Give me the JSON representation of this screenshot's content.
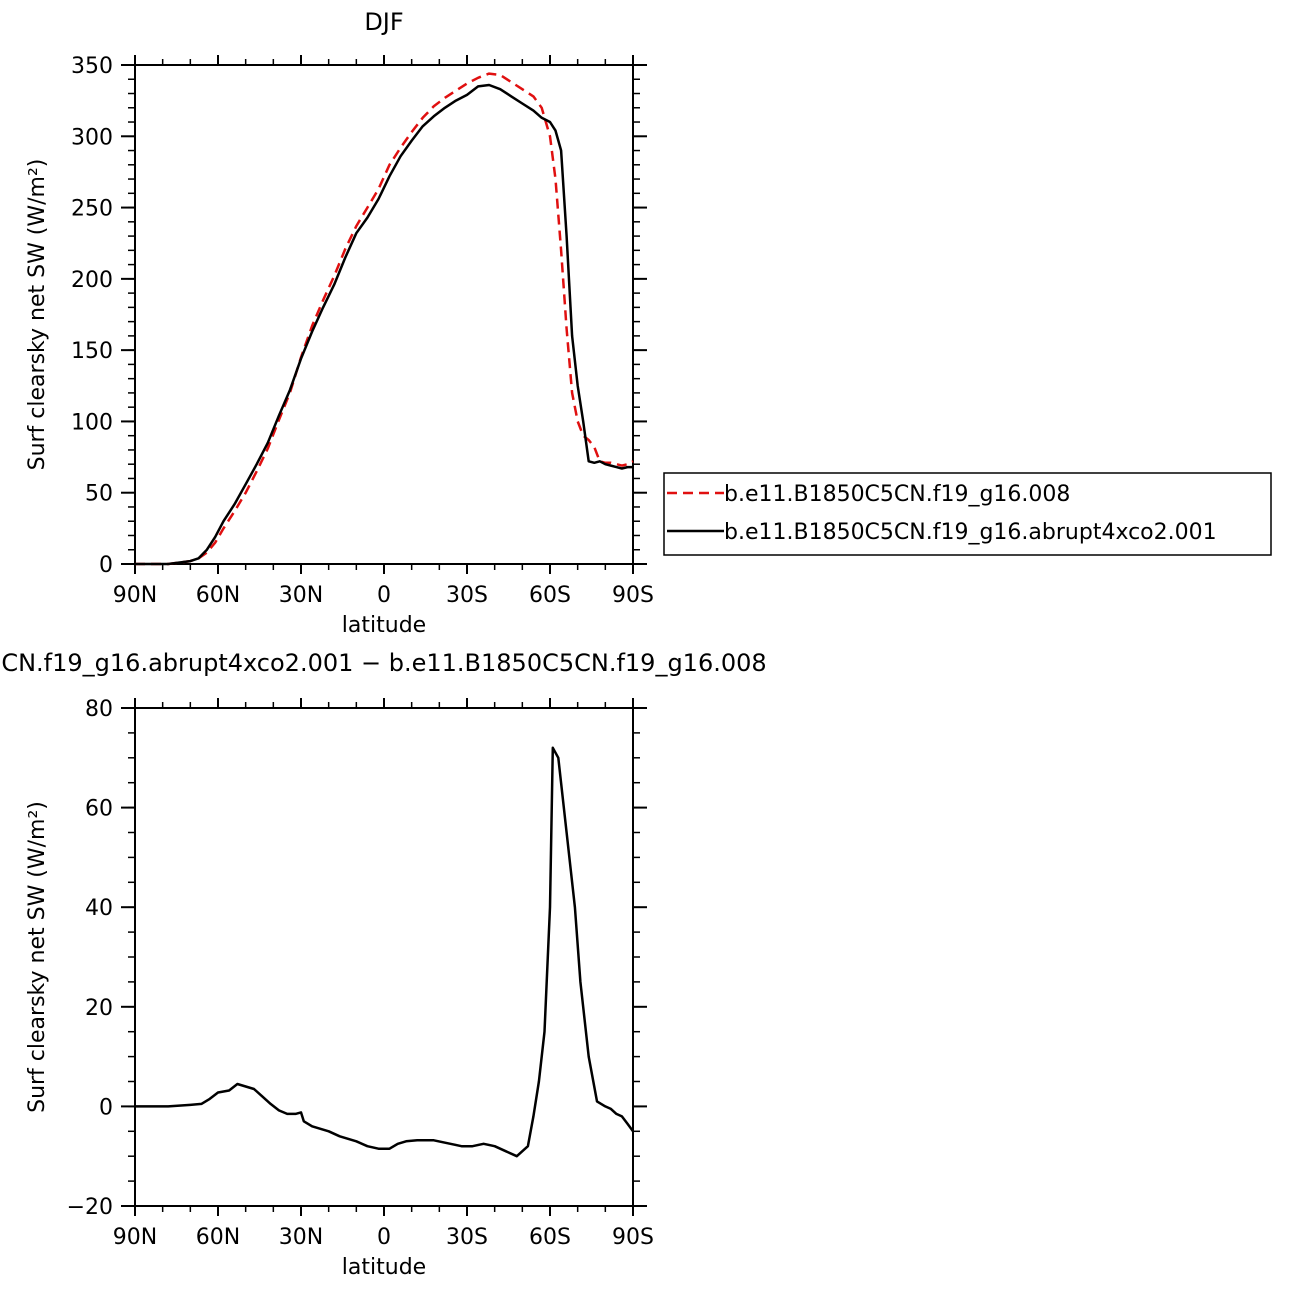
{
  "chart_data": [
    {
      "type": "line",
      "title": "DJF",
      "xlabel": "latitude",
      "ylabel": "Surf clearsky net SW (W/m²)",
      "x_tick_labels": [
        "90N",
        "60N",
        "30N",
        "0",
        "30S",
        "60S",
        "90S"
      ],
      "x_tick_values": [
        90,
        60,
        30,
        0,
        -30,
        -60,
        -90
      ],
      "xlim": [
        90,
        -90
      ],
      "y_ticks": [
        "0",
        "50",
        "100",
        "150",
        "200",
        "250",
        "300",
        "350"
      ],
      "ylim": [
        0,
        350
      ],
      "legend": {
        "placement": "right",
        "entries": [
          "b.e11.B1850C5CN.f19_g16.008",
          "b.e11.B1850C5CN.f19_g16.abrupt4xco2.001"
        ]
      },
      "series": [
        {
          "name": "b.e11.B1850C5CN.f19_g16.008",
          "color": "#e01010",
          "style": "dashed",
          "x": [
            90,
            78,
            70,
            67,
            64,
            61,
            58,
            54,
            50,
            46,
            42,
            38,
            34,
            30,
            26,
            22,
            18,
            14,
            10,
            6,
            2,
            -2,
            -6,
            -10,
            -14,
            -18,
            -22,
            -26,
            -30,
            -34,
            -38,
            -42,
            -46,
            -50,
            -54,
            -57,
            -60,
            -62,
            -64,
            -66,
            -68,
            -70,
            -72,
            -74,
            -76,
            -78,
            -80,
            -82,
            -84,
            -86,
            -88,
            -90
          ],
          "y": [
            0,
            0,
            2,
            4,
            8,
            15,
            25,
            37,
            50,
            65,
            81,
            101,
            120,
            145,
            167,
            185,
            202,
            221,
            237,
            250,
            263,
            280,
            292,
            303,
            313,
            321,
            327,
            332,
            337,
            341,
            344,
            343,
            338,
            333,
            328,
            320,
            300,
            270,
            220,
            165,
            120,
            100,
            90,
            87,
            82,
            72,
            71,
            71,
            70,
            69,
            70,
            72
          ]
        },
        {
          "name": "b.e11.B1850C5CN.f19_g16.abrupt4xco2.001",
          "color": "#000000",
          "style": "solid",
          "x": [
            90,
            78,
            70,
            67,
            64,
            61,
            58,
            54,
            50,
            46,
            42,
            38,
            34,
            30,
            26,
            22,
            18,
            14,
            10,
            6,
            2,
            -2,
            -6,
            -10,
            -14,
            -18,
            -22,
            -26,
            -30,
            -34,
            -38,
            -42,
            -46,
            -50,
            -54,
            -57,
            -60,
            -62,
            -64,
            -66,
            -68,
            -70,
            -72,
            -74,
            -76,
            -78,
            -80,
            -82,
            -84,
            -86,
            -88,
            -90
          ],
          "y": [
            0,
            0,
            2,
            4,
            10,
            19,
            30,
            42,
            56,
            70,
            85,
            104,
            122,
            144,
            163,
            180,
            196,
            215,
            232,
            243,
            256,
            272,
            286,
            297,
            307,
            314,
            320,
            325,
            329,
            335,
            336,
            333,
            328,
            323,
            318,
            313,
            310,
            304,
            290,
            230,
            160,
            125,
            100,
            72,
            71,
            72,
            70,
            69,
            68,
            67,
            68,
            68
          ]
        }
      ]
    },
    {
      "type": "line",
      "title": "CN.f19_g16.abrupt4xco2.001 − b.e11.B1850C5CN.f19_g16.008",
      "xlabel": "latitude",
      "ylabel": "Surf clearsky net SW (W/m²)",
      "x_tick_labels": [
        "90N",
        "60N",
        "30N",
        "0",
        "30S",
        "60S",
        "90S"
      ],
      "x_tick_values": [
        90,
        60,
        30,
        0,
        -30,
        -60,
        -90
      ],
      "xlim": [
        90,
        -90
      ],
      "y_ticks": [
        "−20",
        "0",
        "20",
        "40",
        "60",
        "80"
      ],
      "ylim": [
        -20,
        80
      ],
      "series": [
        {
          "color": "#000000",
          "style": "solid",
          "x": [
            90,
            78,
            70,
            66,
            63,
            60,
            56,
            53,
            50,
            47,
            44,
            41,
            38,
            35,
            32,
            30,
            29,
            26,
            20,
            16,
            10,
            6,
            2,
            -2,
            -5,
            -8,
            -12,
            -18,
            -24,
            -28,
            -32,
            -36,
            -40,
            -44,
            -48,
            -52,
            -54,
            -56,
            -58,
            -60,
            -61,
            -63,
            -66,
            -69,
            -71,
            -74,
            -77,
            -80,
            -82,
            -84,
            -86,
            -88,
            -90
          ],
          "y": [
            0,
            0,
            0.3,
            0.5,
            1.5,
            2.8,
            3.2,
            4.5,
            4.0,
            3.5,
            2.0,
            0.5,
            -0.8,
            -1.5,
            -1.5,
            -1.2,
            -3.0,
            -4.0,
            -5.0,
            -6.0,
            -7.0,
            -8.0,
            -8.5,
            -8.5,
            -7.5,
            -7.0,
            -6.8,
            -6.8,
            -7.5,
            -8.0,
            -8.0,
            -7.5,
            -8.0,
            -9.0,
            -10.0,
            -8.0,
            -2.0,
            5.0,
            15.0,
            40.0,
            72.0,
            70.0,
            55.0,
            40.0,
            25.0,
            10.0,
            1.0,
            0.0,
            -0.5,
            -1.5,
            -2.0,
            -3.5,
            -5.0
          ]
        }
      ]
    }
  ]
}
